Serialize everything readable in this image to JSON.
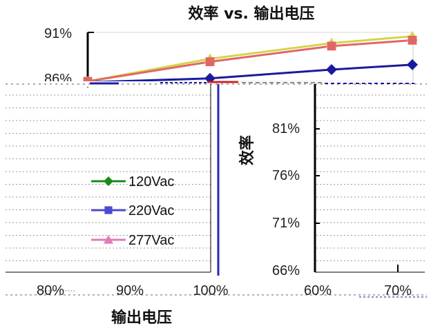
{
  "chart_data": {
    "type": "line",
    "title": "效率 vs. 输出电压",
    "xlabel": "输出电压",
    "ylabel": "效率",
    "y_ticks": [
      "66%",
      "71%",
      "76%",
      "81%",
      "86%",
      "91%"
    ],
    "x_ticks_left": [
      "80%",
      "90%",
      "100%"
    ],
    "x_ticks_right": [
      "60%",
      "70%"
    ],
    "top_panel": {
      "ylim": [
        86,
        91
      ],
      "x_points": [
        0,
        1,
        2,
        3
      ],
      "series": [
        {
          "name": "120Vac",
          "color": "#d4d44a",
          "marker": "triangle",
          "values": [
            86.0,
            88.3,
            89.9,
            90.6
          ]
        },
        {
          "name": "220Vac",
          "color": "#1a1aa0",
          "marker": "diamond",
          "values": [
            85.9,
            86.3,
            87.2,
            87.7
          ]
        },
        {
          "name": "277Vac",
          "color": "#e06666",
          "marker": "square",
          "values": [
            86.0,
            88.0,
            89.6,
            90.2
          ]
        }
      ]
    },
    "legend": {
      "placement": "left-middle",
      "entries": [
        {
          "name": "120Vac",
          "color": "#1a8a1a",
          "marker": "diamond"
        },
        {
          "name": "220Vac",
          "color": "#4a4ad4",
          "marker": "square"
        },
        {
          "name": "277Vac",
          "color": "#e07ab8",
          "marker": "triangle"
        }
      ]
    },
    "grid": true
  }
}
